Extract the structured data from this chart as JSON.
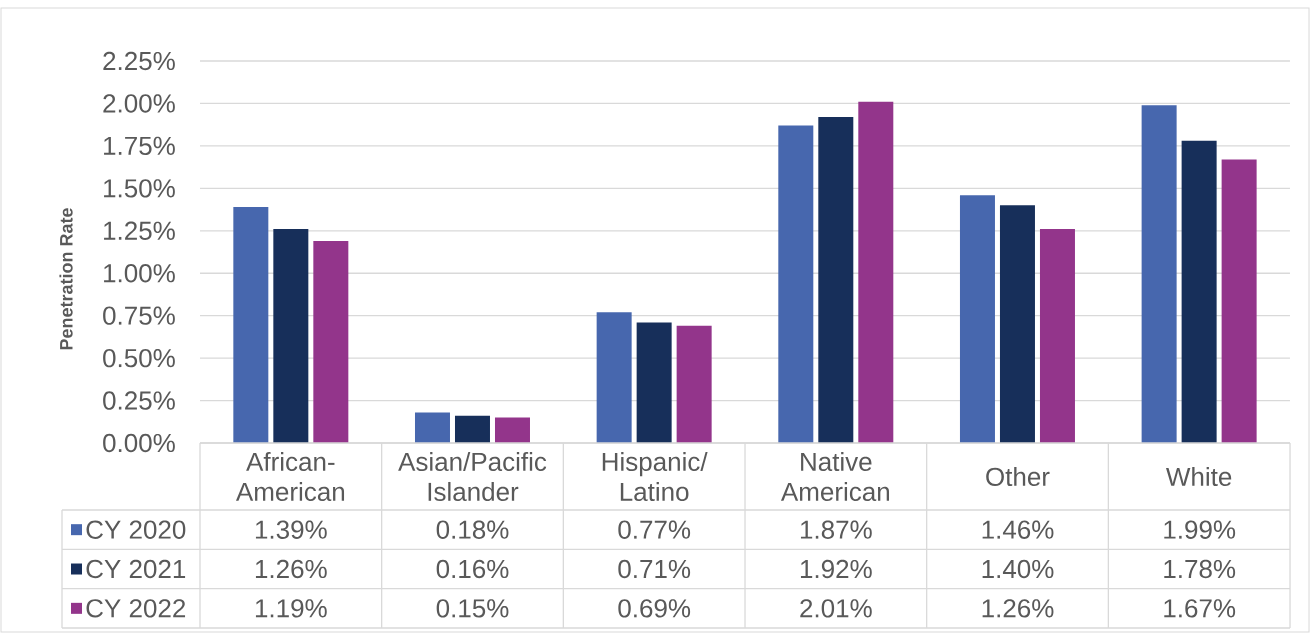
{
  "chart_data": {
    "type": "bar",
    "ylabel": "Penetration Rate",
    "categories": [
      "African-American",
      "Asian/Pacific Islander",
      "Hispanic/Latino",
      "Native American",
      "Other",
      "White"
    ],
    "series": [
      {
        "name": "CY 2020",
        "color": "#4767ae",
        "values": [
          1.39,
          0.18,
          0.77,
          1.87,
          1.46,
          1.99
        ],
        "value_labels": [
          "1.39%",
          "0.18%",
          "0.77%",
          "1.87%",
          "1.46%",
          "1.99%"
        ]
      },
      {
        "name": "CY 2021",
        "color": "#172f5a",
        "values": [
          1.26,
          0.16,
          0.71,
          1.92,
          1.4,
          1.78
        ],
        "value_labels": [
          "1.26%",
          "0.16%",
          "0.71%",
          "1.92%",
          "1.40%",
          "1.78%"
        ]
      },
      {
        "name": "CY 2022",
        "color": "#93358b",
        "values": [
          1.19,
          0.15,
          0.69,
          2.01,
          1.26,
          1.67
        ],
        "value_labels": [
          "1.19%",
          "0.15%",
          "0.69%",
          "2.01%",
          "1.26%",
          "1.67%"
        ]
      }
    ],
    "ylim": [
      0,
      2.25
    ],
    "yticks": [
      {
        "value": 0,
        "label": "0.00%"
      },
      {
        "value": 0.25,
        "label": "0.25%"
      },
      {
        "value": 0.5,
        "label": "0.50%"
      },
      {
        "value": 0.75,
        "label": "0.75%"
      },
      {
        "value": 1,
        "label": "1.00%"
      },
      {
        "value": 1.25,
        "label": "1.25%"
      },
      {
        "value": 1.5,
        "label": "1.50%"
      },
      {
        "value": 1.75,
        "label": "1.75%"
      },
      {
        "value": 2,
        "label": "2.00%"
      },
      {
        "value": 2.25,
        "label": "2.25%"
      }
    ],
    "grid": "y",
    "legend": "bottom left"
  }
}
